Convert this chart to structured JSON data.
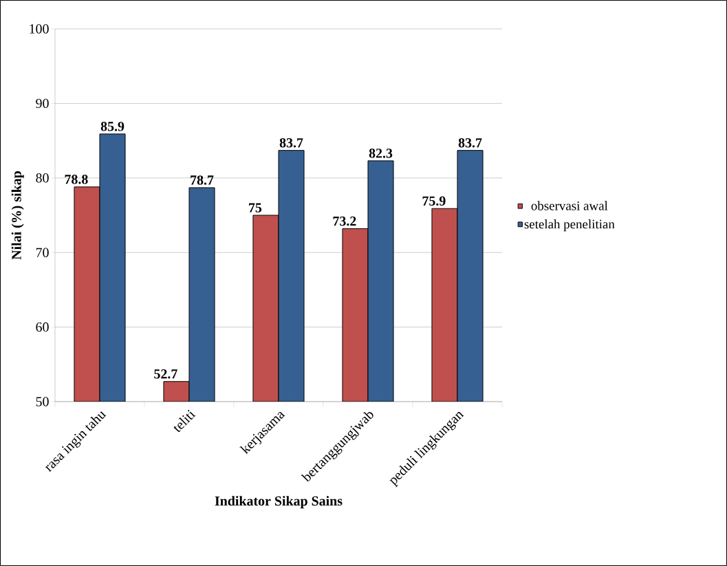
{
  "chart_data": {
    "type": "bar",
    "xlabel": "Indikator Sikap Sains",
    "ylabel": "Nilai (%) sikap",
    "categories": [
      "rasa ingin tahu",
      "teliti",
      "kerjasama",
      "bertanggungjwab",
      "peduli lingkungan"
    ],
    "series": [
      {
        "name": "observasi awal",
        "color": "#c0504d",
        "values": [
          78.8,
          52.7,
          75,
          73.2,
          75.9
        ]
      },
      {
        "name": "setelah penelitian",
        "color": "#376092",
        "values": [
          85.9,
          78.7,
          83.7,
          82.3,
          83.7
        ]
      }
    ],
    "ylim": [
      50,
      100
    ],
    "yticks": [
      50,
      60,
      70,
      80,
      90,
      100
    ],
    "grid": "y",
    "legend": "right",
    "data_labels": true
  }
}
